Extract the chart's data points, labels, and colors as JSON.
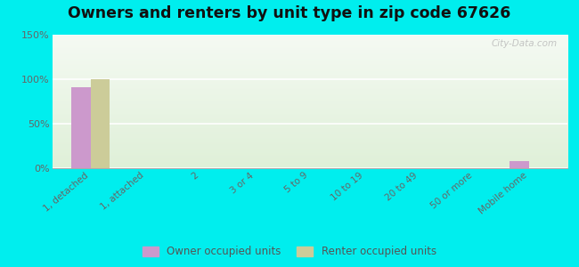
{
  "title": "Owners and renters by unit type in zip code 67626",
  "categories": [
    "1, detached",
    "1, attached",
    "2",
    "3 or 4",
    "5 to 9",
    "10 to 19",
    "20 to 49",
    "50 or more",
    "Mobile home"
  ],
  "owner_values": [
    91,
    0,
    0,
    0,
    0,
    0,
    0,
    0,
    8
  ],
  "renter_values": [
    100,
    0,
    0,
    0,
    0,
    0,
    0,
    0,
    0
  ],
  "owner_color": "#cc99cc",
  "renter_color": "#cccc99",
  "ylim": [
    0,
    150
  ],
  "yticks": [
    0,
    50,
    100,
    150
  ],
  "ytick_labels": [
    "0%",
    "50%",
    "100%",
    "150%"
  ],
  "bg_top_color": "#f0f8ee",
  "bg_bottom_color": "#ddf0dd",
  "outer_background": "#00eeee",
  "watermark": "City-Data.com",
  "bar_width": 0.35,
  "title_fontsize": 12.5
}
